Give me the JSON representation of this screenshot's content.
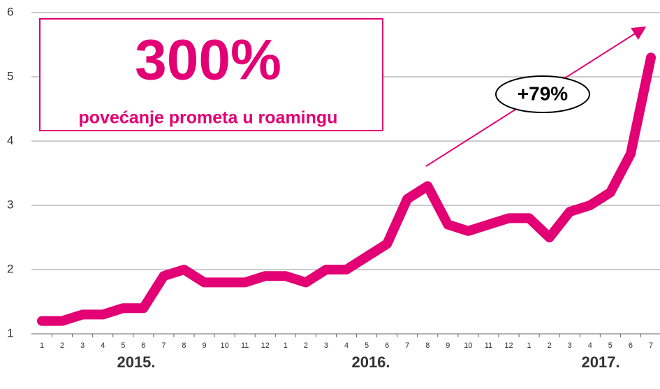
{
  "chart_data": {
    "type": "line",
    "headline": "300%",
    "subtitle": "povećanje prometa u roamingu",
    "annotation": "+79%",
    "year_labels": [
      "2015.",
      "2016.",
      "2017."
    ],
    "categories": [
      "1",
      "2",
      "3",
      "4",
      "5",
      "6",
      "7",
      "8",
      "9",
      "10",
      "11",
      "12",
      "1",
      "2",
      "3",
      "4",
      "5",
      "6",
      "7",
      "8",
      "9",
      "10",
      "11",
      "12",
      "1",
      "2",
      "3",
      "4",
      "5",
      "6",
      "7"
    ],
    "values": [
      1.2,
      1.2,
      1.3,
      1.3,
      1.4,
      1.4,
      1.9,
      2.0,
      1.8,
      1.8,
      1.8,
      1.9,
      1.9,
      1.8,
      2.0,
      2.0,
      2.2,
      2.4,
      3.1,
      3.3,
      2.7,
      2.6,
      2.7,
      2.8,
      2.8,
      2.5,
      2.9,
      3.0,
      3.2,
      3.8,
      5.3
    ],
    "color": "#e20074",
    "ylim": [
      1,
      6
    ],
    "yticks": [
      1,
      2,
      3,
      4,
      5,
      6
    ],
    "grid": true
  }
}
